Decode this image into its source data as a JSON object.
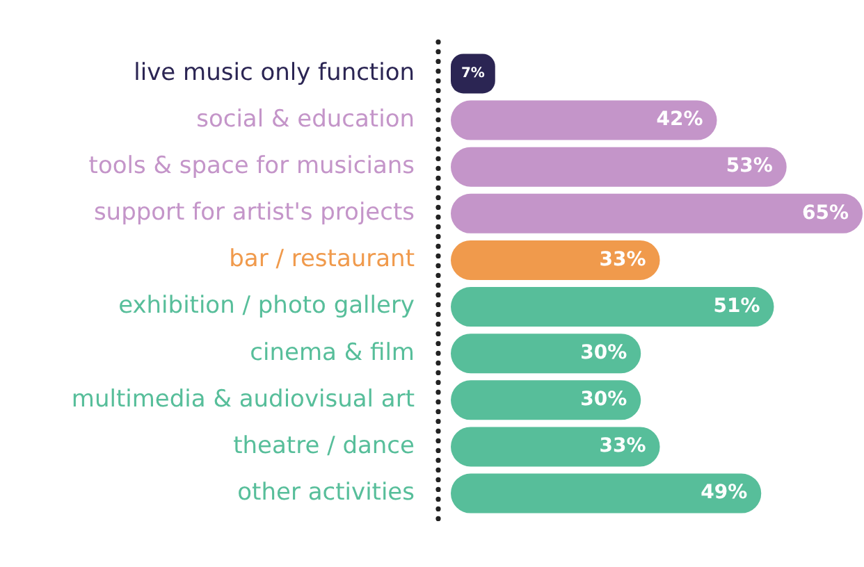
{
  "chart_data": {
    "type": "bar",
    "orientation": "horizontal",
    "tick_labels": "y",
    "legend": false,
    "categories": [
      "live music only function",
      "social & education",
      "tools & space for musicians",
      "support for artist's projects",
      "bar / restaurant",
      "exhibition / photo gallery",
      "cinema & film",
      "multimedia & audiovisual art",
      "theatre / dance",
      "other activities"
    ],
    "values": [
      7,
      42,
      53,
      65,
      33,
      51,
      30,
      30,
      33,
      49
    ],
    "value_labels": [
      "7%",
      "42%",
      "53%",
      "65%",
      "33%",
      "51%",
      "30%",
      "30%",
      "33%",
      "49%"
    ],
    "colors": [
      "#2b2553",
      "#c495c9",
      "#c495c9",
      "#c495c9",
      "#f09a4c",
      "#57be9a",
      "#57be9a",
      "#57be9a",
      "#57be9a",
      "#57be9a"
    ]
  }
}
